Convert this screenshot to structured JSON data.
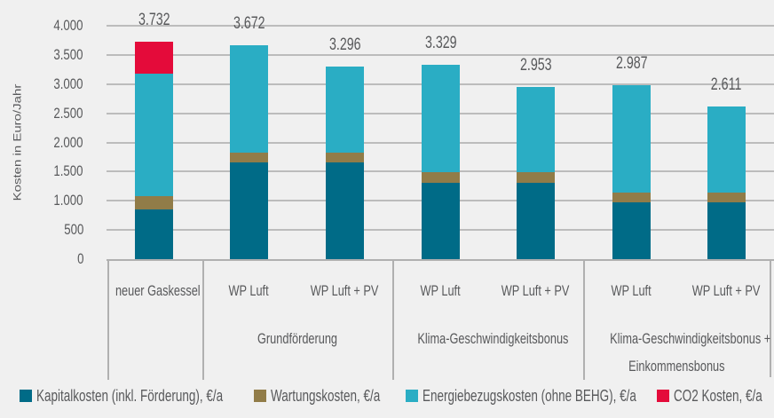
{
  "chart_data": {
    "type": "bar",
    "stacked": true,
    "title": "",
    "xlabel": "",
    "ylabel": "Kosten in Euro/Jahr",
    "ylim": [
      0,
      4000
    ],
    "yticks": [
      "0",
      "500",
      "1.000",
      "1.500",
      "2.000",
      "2.500",
      "3.000",
      "3.500",
      "4.000"
    ],
    "grid": true,
    "legend_position": "bottom",
    "categories": [
      "neuer Gaskessel",
      "WP Luft",
      "WP Luft + PV",
      "WP Luft",
      "WP Luft + PV",
      "WP Luft",
      "WP Luft + PV"
    ],
    "groups": [
      {
        "label": "",
        "members": [
          0
        ]
      },
      {
        "label": "Grundförderung",
        "members": [
          1,
          2
        ]
      },
      {
        "label": "Klima-Geschwindigkeitsbonus",
        "members": [
          3,
          4
        ]
      },
      {
        "label": "Klima-Geschwindigkeitsbonus + Einkommensbonus",
        "label_lines": [
          "Klima-Geschwindigkeitsbonus +",
          "Einkommensbonus"
        ],
        "members": [
          5,
          6
        ]
      }
    ],
    "series": [
      {
        "name": "Kapitalkosten (inkl. Förderung), €/a",
        "color": "#006b87",
        "values": [
          854,
          1657,
          1657,
          1316,
          1316,
          976,
          976
        ]
      },
      {
        "name": "Wartungskosten, €/a",
        "color": "#917c48",
        "values": [
          228,
          177,
          177,
          178,
          178,
          172,
          172
        ]
      },
      {
        "name": "Energiebezugskosten (ohne BEHG), €/a",
        "color": "#2aadc4",
        "values": [
          2104,
          1838,
          1462,
          1835,
          1459,
          1839,
          1463
        ]
      },
      {
        "name": "CO2 Kosten, €/a",
        "color": "#e40b3a",
        "values": [
          546,
          0,
          0,
          0,
          0,
          0,
          0
        ]
      }
    ],
    "totals": [
      3732,
      3672,
      3296,
      3329,
      2953,
      2987,
      2611
    ],
    "total_labels": [
      "3.732",
      "3.672",
      "3.296",
      "3.329",
      "2.953",
      "2.987",
      "2.611"
    ]
  },
  "colors": {
    "background": "#f0f0f0",
    "text": "#58595b",
    "grid": "#bcbcbc"
  }
}
